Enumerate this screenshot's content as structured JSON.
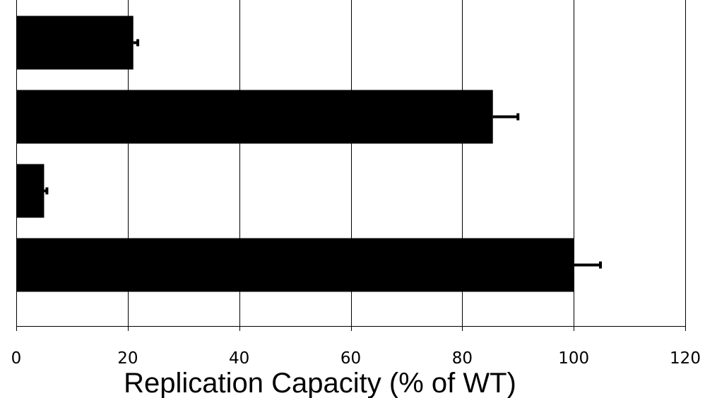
{
  "chart_data": {
    "type": "bar",
    "orientation": "horizontal",
    "categories": [
      "",
      "",
      "",
      ""
    ],
    "values": [
      21,
      85.5,
      5,
      100
    ],
    "errors": [
      0.8,
      4.5,
      0.5,
      4.8
    ],
    "xlabel": "Replication Capacity (% of WT)",
    "ylabel": "",
    "xlim": [
      0,
      120
    ],
    "xticks": [
      "0",
      "20",
      "40",
      "60",
      "80",
      "100",
      "120"
    ],
    "grid": "vertical",
    "legend": "none",
    "bar_color": "#000000",
    "grid_color": "#000000"
  }
}
